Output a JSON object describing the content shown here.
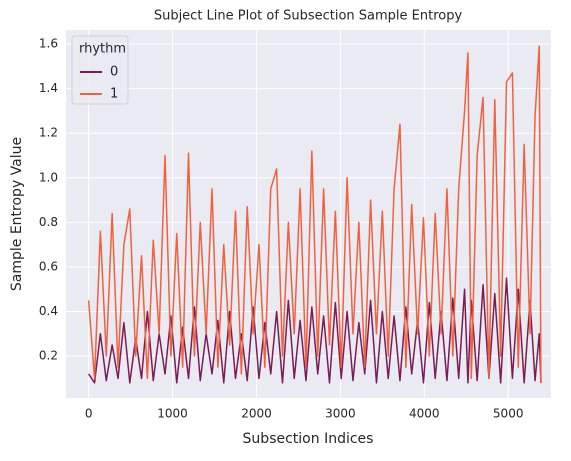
{
  "chart_data": {
    "type": "line",
    "title": "Subject Line Plot of Subsection Sample Entropy",
    "xlabel": "Subsection Indices",
    "ylabel": "Sample Entropy Value",
    "legend_title": "rhythm",
    "legend": "upper left",
    "grid": true,
    "x": [
      0,
      70,
      140,
      210,
      280,
      350,
      420,
      490,
      560,
      630,
      700,
      770,
      840,
      910,
      980,
      1050,
      1120,
      1190,
      1260,
      1330,
      1400,
      1470,
      1540,
      1610,
      1680,
      1750,
      1820,
      1890,
      1960,
      2030,
      2100,
      2170,
      2240,
      2310,
      2380,
      2450,
      2520,
      2590,
      2660,
      2730,
      2800,
      2870,
      2940,
      3010,
      3080,
      3150,
      3220,
      3290,
      3360,
      3430,
      3500,
      3570,
      3640,
      3710,
      3780,
      3850,
      3920,
      3990,
      4060,
      4130,
      4200,
      4270,
      4340,
      4410,
      4480,
      4520,
      4560,
      4630,
      4700,
      4770,
      4840,
      4910,
      4980,
      5050,
      5120,
      5190,
      5260,
      5320,
      5370,
      5390
    ],
    "series": [
      {
        "name": "0",
        "color": "#7a1d57",
        "values": [
          0.12,
          0.08,
          0.3,
          0.09,
          0.25,
          0.1,
          0.35,
          0.08,
          0.28,
          0.1,
          0.4,
          0.09,
          0.3,
          0.12,
          0.38,
          0.08,
          0.33,
          0.1,
          0.42,
          0.09,
          0.3,
          0.12,
          0.36,
          0.08,
          0.4,
          0.1,
          0.3,
          0.09,
          0.42,
          0.1,
          0.35,
          0.12,
          0.4,
          0.08,
          0.45,
          0.1,
          0.36,
          0.09,
          0.42,
          0.12,
          0.38,
          0.08,
          0.44,
          0.1,
          0.4,
          0.09,
          0.35,
          0.12,
          0.45,
          0.08,
          0.4,
          0.1,
          0.38,
          0.09,
          0.42,
          0.12,
          0.36,
          0.08,
          0.44,
          0.1,
          0.4,
          0.09,
          0.46,
          0.1,
          0.5,
          0.08,
          0.45,
          0.09,
          0.52,
          0.1,
          0.48,
          0.08,
          0.55,
          0.1,
          0.5,
          0.08,
          0.45,
          0.09,
          0.3,
          0.08
        ]
      },
      {
        "name": "1",
        "color": "#f0613f",
        "values": [
          0.45,
          0.1,
          0.76,
          0.2,
          0.84,
          0.15,
          0.7,
          0.86,
          0.2,
          0.65,
          0.1,
          0.72,
          0.3,
          1.1,
          0.2,
          0.75,
          0.15,
          1.11,
          0.2,
          0.8,
          0.3,
          0.95,
          0.15,
          0.7,
          0.25,
          0.85,
          0.12,
          0.87,
          0.3,
          0.7,
          0.15,
          0.95,
          1.04,
          0.2,
          0.8,
          0.3,
          0.95,
          0.15,
          1.12,
          0.2,
          0.95,
          0.25,
          0.85,
          0.15,
          1.0,
          0.3,
          0.8,
          0.15,
          0.9,
          0.3,
          0.85,
          0.2,
          0.95,
          1.24,
          0.15,
          0.88,
          0.3,
          0.82,
          0.2,
          0.84,
          0.3,
          0.95,
          0.2,
          0.95,
          1.3,
          1.56,
          0.1,
          1.1,
          1.36,
          0.1,
          1.35,
          0.2,
          1.43,
          1.47,
          0.15,
          1.15,
          0.3,
          1.28,
          1.59,
          0.08
        ]
      }
    ],
    "xlim": [
      -270,
      5510
    ],
    "xticks": [
      0,
      1000,
      2000,
      3000,
      4000,
      5000
    ],
    "ylim": [
      0.012,
      1.663
    ],
    "yticks": [
      0.2,
      0.4,
      0.6,
      0.8,
      {
        "value": 1,
        "label": "1.0"
      },
      1.2,
      1.4,
      1.6
    ]
  }
}
